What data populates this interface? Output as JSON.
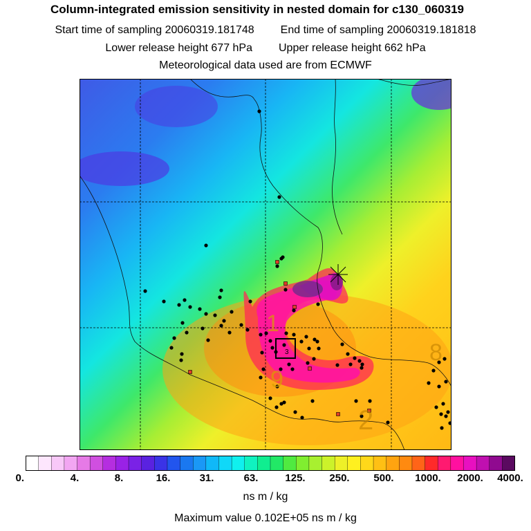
{
  "header": {
    "title": "Column-integrated emission sensitivity in nested domain for c130_060319",
    "start_label": "Start time of sampling 20060319.181748",
    "end_label": "End time of sampling 20060319.181818",
    "lower_label": "Lower release height  677 hPa",
    "upper_label": "Upper release height  662 hPa",
    "met_label": "Meteorological data used are from ECMWF"
  },
  "map": {
    "contour_labels": [
      "1",
      "9",
      "2",
      "8",
      "3"
    ]
  },
  "colorbar": {
    "tick_labels": [
      "0.",
      "4.",
      "8.",
      "16.",
      "31.",
      "63.",
      "125.",
      "250.",
      "500.",
      "1000.",
      "2000.",
      "4000."
    ],
    "colors": [
      "#ffffff",
      "#fde6fd",
      "#f8c8f8",
      "#f2a6f2",
      "#e67ae6",
      "#d04fe0",
      "#b52ee0",
      "#9a22e6",
      "#7a22e6",
      "#5a22e0",
      "#3a33e6",
      "#2255ee",
      "#1a78f0",
      "#1a98f6",
      "#10b8f8",
      "#10d8f8",
      "#10f0ee",
      "#10f2c0",
      "#10ee90",
      "#22e866",
      "#50ea40",
      "#80ee30",
      "#a8f030",
      "#ccf22a",
      "#eef028",
      "#fff020",
      "#ffd81a",
      "#ffc014",
      "#ffa410",
      "#ff8a10",
      "#ff6418",
      "#ff2a2a",
      "#ff1a70",
      "#ff10a0",
      "#e810c0",
      "#c010b0",
      "#900a90",
      "#5a0a60"
    ],
    "units": "ns m / kg"
  },
  "footer": {
    "max_value": "Maximum value  0.102E+05 ns m / kg"
  }
}
